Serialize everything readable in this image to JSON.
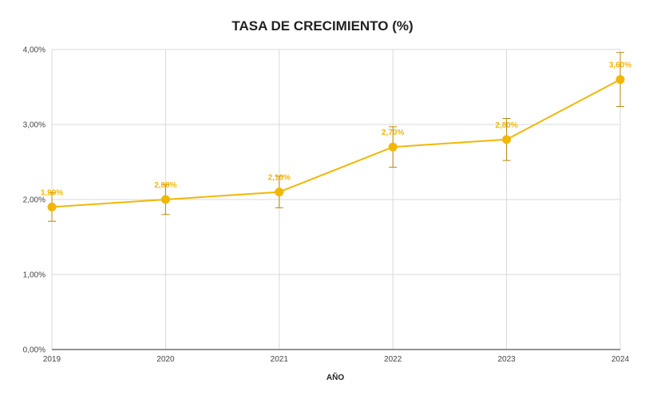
{
  "chart_data": {
    "type": "line",
    "title": "TASA DE CRECIMIENTO (%)",
    "xlabel": "AÑO",
    "ylabel": "",
    "categories": [
      "2019",
      "2020",
      "2021",
      "2022",
      "2023",
      "2024"
    ],
    "series": [
      {
        "values": [
          1.9,
          2.0,
          2.1,
          2.7,
          2.8,
          3.6
        ],
        "data_labels": [
          "1,90%",
          "2,00%",
          "2,10%",
          "2,70%",
          "2,80%",
          "3,60%"
        ],
        "error_low": [
          1.71,
          1.8,
          1.89,
          2.43,
          2.52,
          3.24
        ],
        "error_high": [
          2.09,
          2.2,
          2.31,
          2.97,
          3.08,
          3.96
        ],
        "color": "#f2b705"
      }
    ],
    "ylim": [
      0,
      4
    ],
    "y_ticks": [
      {
        "value": 0,
        "label": "0,00%"
      },
      {
        "value": 1,
        "label": "1,00%"
      },
      {
        "value": 2,
        "label": "2,00%"
      },
      {
        "value": 3,
        "label": "3,00%"
      },
      {
        "value": 4,
        "label": "4,00%"
      }
    ],
    "grid": true,
    "legend": "none",
    "colors": {
      "line": "#f2b705",
      "error_bar": "#b8860b",
      "grid": "#d9d9d9",
      "axis": "#555555"
    }
  }
}
